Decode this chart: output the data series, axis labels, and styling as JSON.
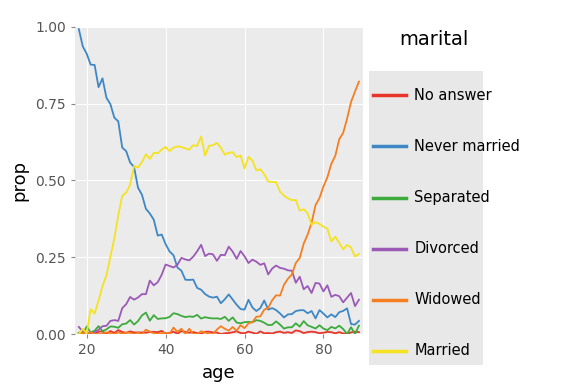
{
  "title": "marital",
  "xlabel": "age",
  "ylabel": "prop",
  "age_min": 18,
  "age_max": 89,
  "plot_background": "#EBEBEB",
  "legend_background": "#E8E8E8",
  "figure_background": "#FFFFFF",
  "categories": [
    "No answer",
    "Never married",
    "Separated",
    "Divorced",
    "Widowed",
    "Married"
  ],
  "colors": {
    "No answer": "#E8352A",
    "Never married": "#3D87C5",
    "Separated": "#3CAB3C",
    "Divorced": "#9B59B6",
    "Widowed": "#F57F20",
    "Married": "#F5E220"
  },
  "ylim": [
    0.0,
    1.0
  ],
  "yticks": [
    0.0,
    0.25,
    0.5,
    0.75,
    1.0
  ],
  "xticks": [
    20,
    40,
    60,
    80
  ],
  "xlim": [
    17,
    90
  ]
}
